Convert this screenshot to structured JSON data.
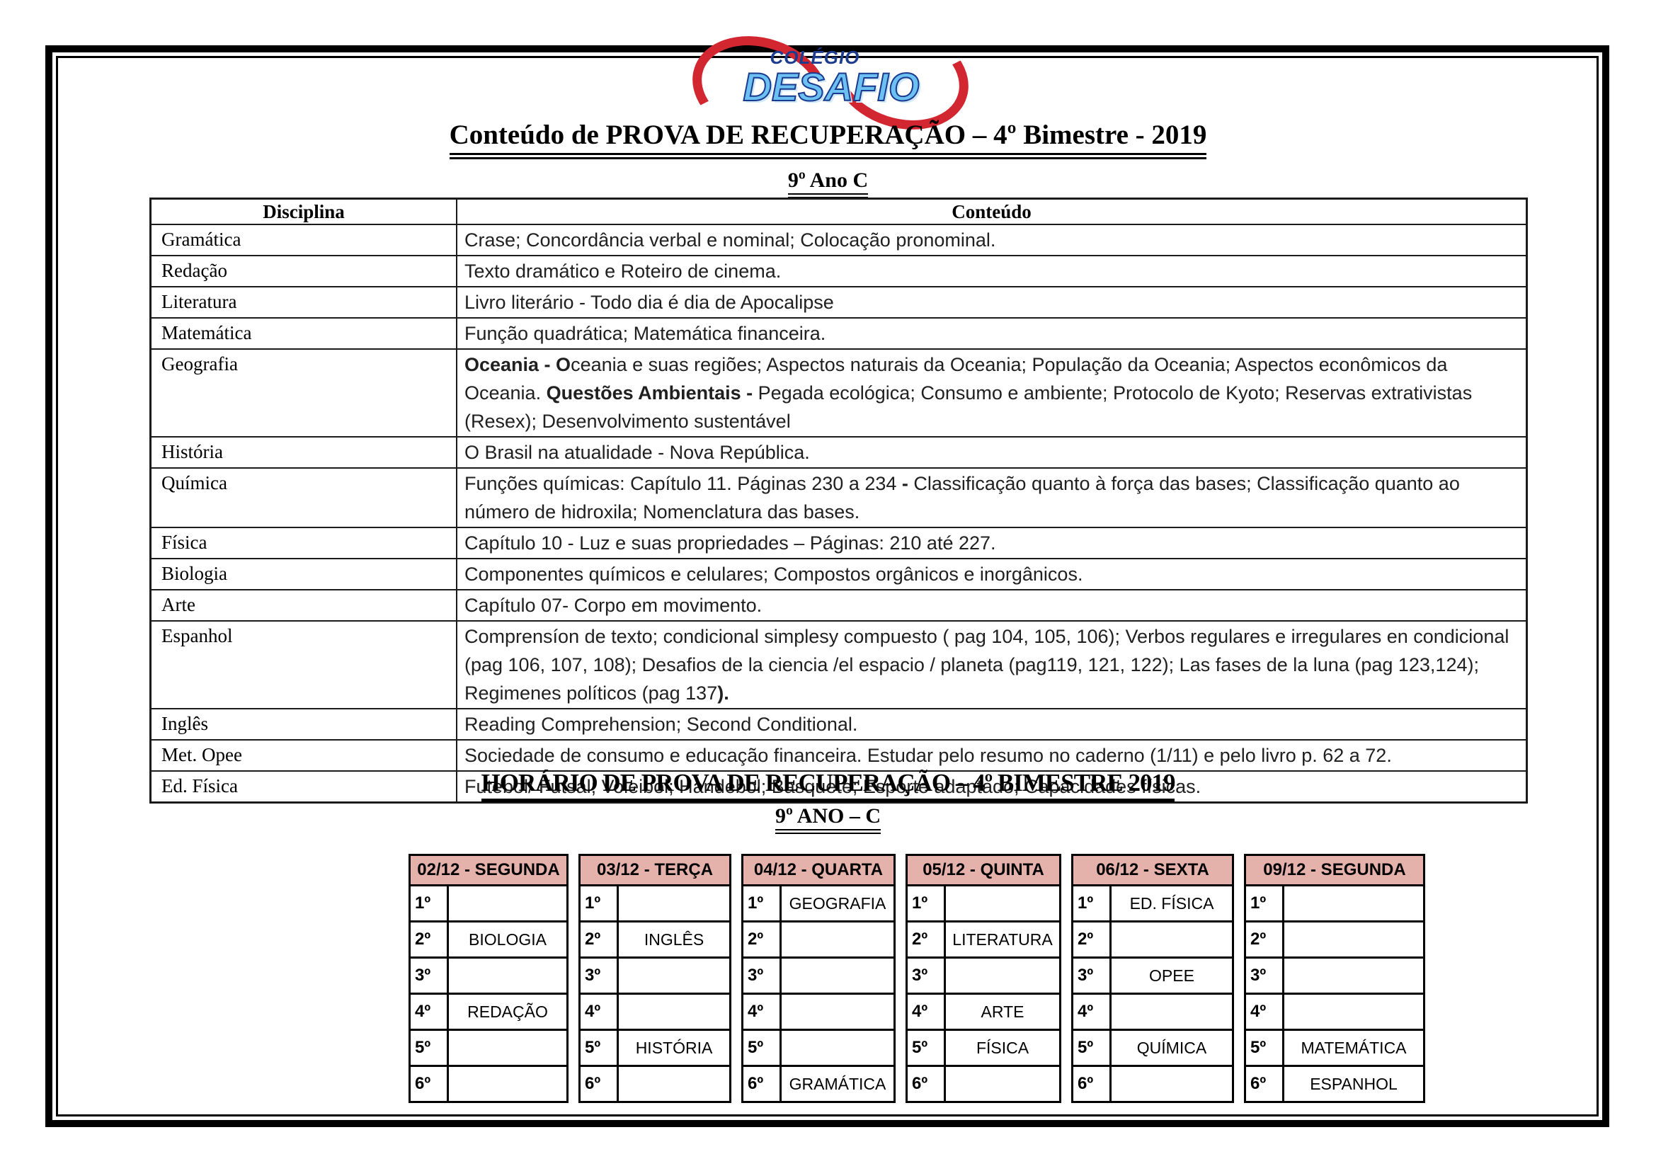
{
  "logo": {
    "line1": "COLÉGIO",
    "line2": "DESAFIO"
  },
  "title": "Conteúdo de PROVA DE RECUPERAÇÃO – 4º Bimestre - 2019",
  "subtitle": "9º Ano C",
  "colors": {
    "schedule_header_bg": "#E5B1AB",
    "swoosh_red": "#D22631",
    "logo_light_blue": "#6CC0F2",
    "logo_dark_blue": "#1D3C8F"
  },
  "content_table": {
    "col_disciplina": "Disciplina",
    "col_conteudo": "Conteúdo",
    "rows": [
      {
        "d": "Gramática",
        "segments": [
          {
            "t": "Crase; Concordância verbal e nominal; Colocação pronominal.",
            "b": false
          }
        ]
      },
      {
        "d": "Redação",
        "segments": [
          {
            "t": "Texto dramático e Roteiro de cinema.",
            "b": false
          }
        ]
      },
      {
        "d": "Literatura",
        "segments": [
          {
            "t": "Livro literário - Todo dia é dia de Apocalipse",
            "b": false
          }
        ]
      },
      {
        "d": "Matemática",
        "segments": [
          {
            "t": "Função quadrática; Matemática financeira.",
            "b": false
          }
        ]
      },
      {
        "d": "Geografia",
        "segments": [
          {
            "t": "Oceania - O",
            "b": true
          },
          {
            "t": "ceania e suas regiões; Aspectos naturais da Oceania; População da Oceania; Aspectos econômicos da Oceania. ",
            "b": false
          },
          {
            "t": "Questões Ambientais - ",
            "b": true
          },
          {
            "t": "Pegada ecológica; Consumo e ambiente; Protocolo de Kyoto; Reservas extrativistas (Resex); Desenvolvimento sustentável",
            "b": false
          }
        ]
      },
      {
        "d": "História",
        "segments": [
          {
            "t": "O Brasil na atualidade - Nova República.",
            "b": false
          }
        ]
      },
      {
        "d": "Química",
        "segments": [
          {
            "t": "Funções químicas: Capítulo 11. Páginas 230 a 234 ",
            "b": false
          },
          {
            "t": "- ",
            "b": true
          },
          {
            "t": "Classificação quanto à força das bases; Classificação quanto ao número de hidroxila; Nomenclatura das bases.",
            "b": false
          }
        ]
      },
      {
        "d": "Física",
        "segments": [
          {
            "t": "Capítulo 10 - Luz e suas propriedades – Páginas: 210 até 227.",
            "b": false
          }
        ]
      },
      {
        "d": "Biologia",
        "segments": [
          {
            "t": "Componentes químicos e celulares; Compostos orgânicos e inorgânicos.",
            "b": false
          }
        ]
      },
      {
        "d": "Arte",
        "segments": [
          {
            "t": "Capítulo 07- Corpo em movimento.",
            "b": false
          }
        ]
      },
      {
        "d": "Espanhol",
        "segments": [
          {
            "t": "Comprensíon de texto; condicional simplesy compuesto ( pag 104, 105, 106); Verbos regulares e irregulares en condicional (pag 106, 107, 108); Desafios de la ciencia /el espacio / planeta (pag119, 121, 122); Las fases de la luna (pag 123,124); Regimenes políticos (pag 137",
            "b": false
          },
          {
            "t": ").",
            "b": true
          }
        ]
      },
      {
        "d": "Inglês",
        "segments": [
          {
            "t": "Reading Comprehension; Second Conditional.",
            "b": false
          }
        ]
      },
      {
        "d": "Met. Opee",
        "segments": [
          {
            "t": "Sociedade de consumo e educação financeira. Estudar pelo resumo no caderno (1/11) e pelo livro p. 62 a 72.",
            "b": false
          }
        ]
      },
      {
        "d": "Ed. Física",
        "segments": [
          {
            "t": "Futebol/ Futsal; Voleibol; Handebol; Basquete; Esporte adaptado; Capacidades físicas.",
            "b": false
          }
        ]
      }
    ]
  },
  "schedule": {
    "title": "HORÁRIO DE PROVA DE RECUPERAÇÃO – 4º BIMESTRE 2019",
    "subtitle": "9º ANO – C",
    "periods": [
      "1º",
      "2º",
      "3º",
      "4º",
      "5º",
      "6º"
    ],
    "days": [
      {
        "label": "02/12 - SEGUNDA",
        "subjects": [
          "",
          "BIOLOGIA",
          "",
          "REDAÇÃO",
          "",
          ""
        ]
      },
      {
        "label": "03/12 - TERÇA",
        "subjects": [
          "",
          "INGLÊS",
          "",
          "",
          "HISTÓRIA",
          ""
        ]
      },
      {
        "label": "04/12 - QUARTA",
        "subjects": [
          "GEOGRAFIA",
          "",
          "",
          "",
          "",
          "GRAMÁTICA"
        ]
      },
      {
        "label": "05/12 - QUINTA",
        "subjects": [
          "",
          "LITERATURA",
          "",
          "ARTE",
          "FÍSICA",
          ""
        ]
      },
      {
        "label": "06/12 - SEXTA",
        "subjects": [
          "ED. FÍSICA",
          "",
          "OPEE",
          "",
          "QUÍMICA",
          ""
        ]
      },
      {
        "label": "09/12 - SEGUNDA",
        "subjects": [
          "",
          "",
          "",
          "",
          "MATEMÁTICA",
          "ESPANHOL"
        ]
      }
    ]
  }
}
